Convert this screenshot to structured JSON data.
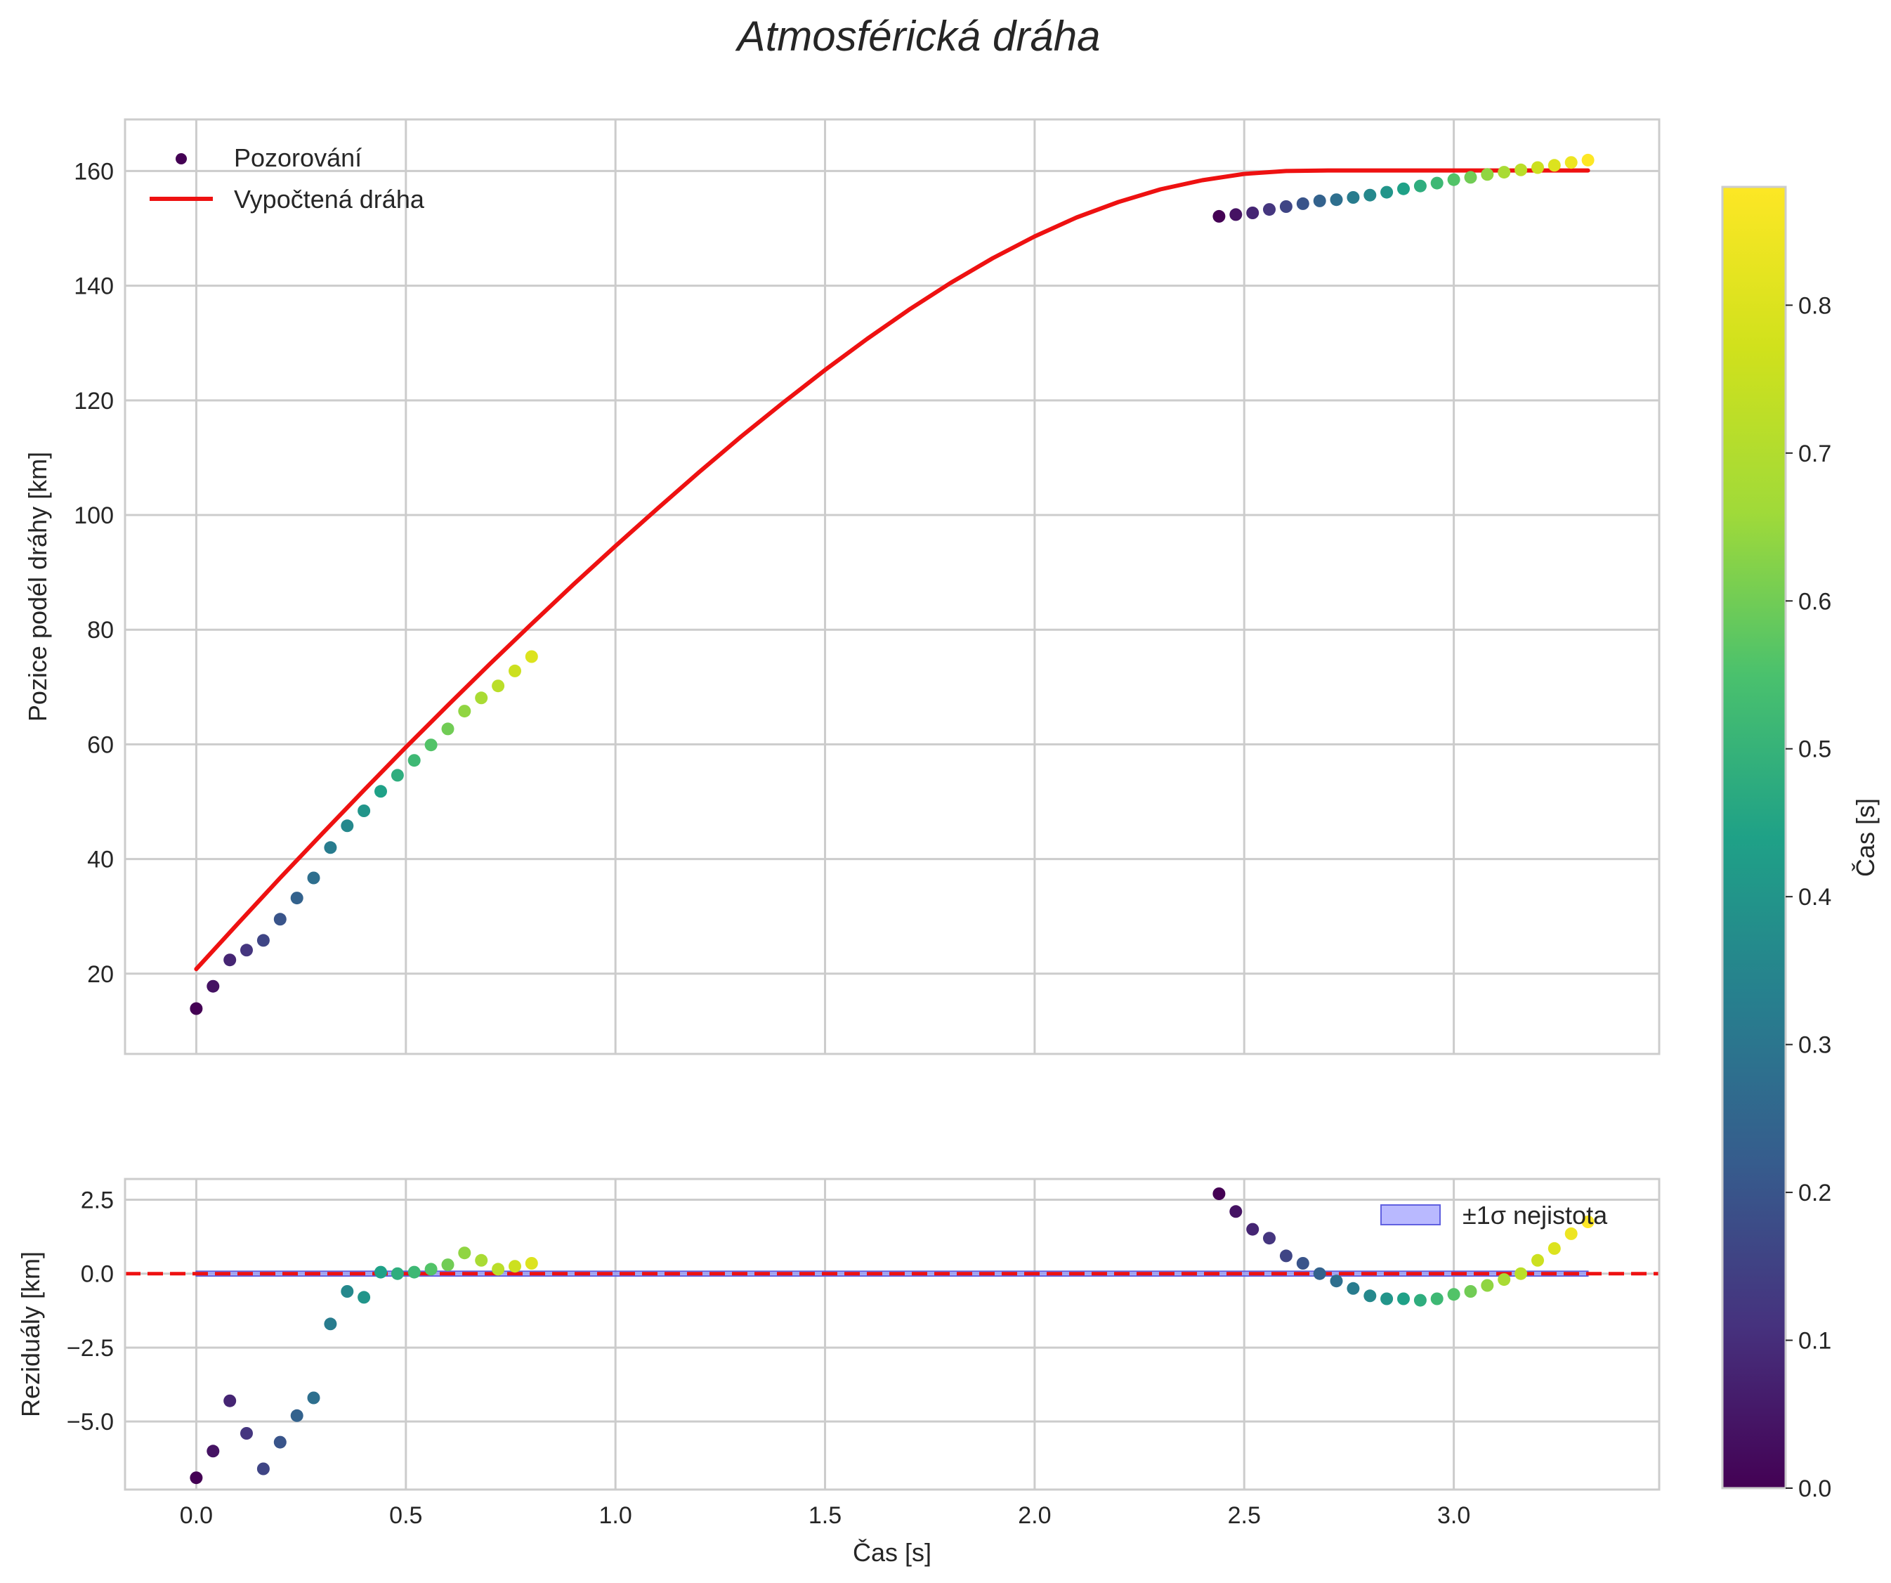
{
  "chart_data": [
    {
      "type": "scatter+line",
      "title": "Atmosférická dráha",
      "xlabel": "",
      "ylabel": "Pozice podél dráhy [km]",
      "xlim": [
        -0.17,
        3.49
      ],
      "ylim": [
        6,
        169
      ],
      "xticks": [
        0.0,
        0.5,
        1.0,
        1.5,
        2.0,
        2.5,
        3.0
      ],
      "yticks": [
        20,
        40,
        60,
        80,
        100,
        120,
        140,
        160
      ],
      "grid": true,
      "legend": {
        "placement": "top-left",
        "entries": [
          "Pozorování",
          "Vypočtená dráha"
        ]
      },
      "observations": {
        "name": "Pozorování",
        "x": [
          0.0,
          0.04,
          0.08,
          0.12,
          0.16,
          0.2,
          0.24,
          0.28,
          0.32,
          0.36,
          0.4,
          0.44,
          0.48,
          0.52,
          0.56,
          0.6,
          0.64,
          0.68,
          0.72,
          0.76,
          0.8,
          2.44,
          2.48,
          2.52,
          2.56,
          2.6,
          2.64,
          2.68,
          2.72,
          2.76,
          2.8,
          2.84,
          2.88,
          2.92,
          2.96,
          3.0,
          3.04,
          3.08,
          3.12,
          3.16,
          3.2,
          3.24,
          3.28,
          3.32
        ],
        "y": [
          13.9,
          17.8,
          22.4,
          24.1,
          25.8,
          29.5,
          33.2,
          36.7,
          42.0,
          45.8,
          48.4,
          51.8,
          54.6,
          57.2,
          59.9,
          62.7,
          65.8,
          68.1,
          70.2,
          72.8,
          75.3,
          152.1,
          152.4,
          152.7,
          153.3,
          153.8,
          154.3,
          154.8,
          155.0,
          155.4,
          155.8,
          156.3,
          156.9,
          157.4,
          157.9,
          158.5,
          158.9,
          159.4,
          159.8,
          160.2,
          160.6,
          161.0,
          161.5,
          161.9
        ],
        "color_values_s": [
          0.0,
          0.04,
          0.08,
          0.12,
          0.16,
          0.2,
          0.24,
          0.28,
          0.32,
          0.36,
          0.4,
          0.44,
          0.48,
          0.52,
          0.56,
          0.6,
          0.64,
          0.68,
          0.72,
          0.76,
          0.8,
          0.0,
          0.04,
          0.08,
          0.12,
          0.16,
          0.2,
          0.24,
          0.28,
          0.32,
          0.36,
          0.4,
          0.44,
          0.48,
          0.52,
          0.56,
          0.6,
          0.64,
          0.68,
          0.72,
          0.76,
          0.8,
          0.84,
          0.88
        ]
      },
      "fit_line": {
        "name": "Vypočtená dráha",
        "color": "#ee1111",
        "x": [
          0.0,
          0.1,
          0.2,
          0.3,
          0.4,
          0.5,
          0.6,
          0.7,
          0.8,
          0.9,
          1.0,
          1.1,
          1.2,
          1.3,
          1.4,
          1.5,
          1.6,
          1.7,
          1.8,
          1.9,
          2.0,
          2.1,
          2.2,
          2.3,
          2.4,
          2.5,
          2.6,
          2.7,
          2.8,
          2.9,
          3.0,
          3.1,
          3.2,
          3.32
        ],
        "y": [
          20.8,
          28.8,
          36.7,
          44.4,
          52.0,
          59.5,
          66.8,
          74.0,
          81.0,
          87.9,
          94.6,
          101.1,
          107.5,
          113.7,
          119.6,
          125.3,
          130.7,
          135.8,
          140.5,
          144.8,
          148.6,
          151.9,
          154.6,
          156.8,
          158.4,
          159.5,
          160.0,
          160.1,
          160.1,
          160.1,
          160.1,
          160.1,
          160.1,
          160.1
        ]
      }
    },
    {
      "type": "scatter",
      "title": "",
      "xlabel": "Čas [s]",
      "ylabel": "Reziduály [km]",
      "xlim": [
        -0.17,
        3.49
      ],
      "ylim": [
        -7.3,
        3.2
      ],
      "xticks": [
        0.0,
        0.5,
        1.0,
        1.5,
        2.0,
        2.5,
        3.0
      ],
      "yticks": [
        2.5,
        0.0,
        -2.5,
        -5.0
      ],
      "grid": true,
      "legend": {
        "placement": "top-right",
        "entries": [
          "±1σ nejistota"
        ]
      },
      "uncertainty_band": {
        "name": "±1σ nejistota",
        "sigma": 0.08,
        "color": "#8080ff"
      },
      "zero_line": {
        "y": 0.0,
        "color": "#ee1111",
        "style": "dashed"
      },
      "residuals": {
        "x": [
          0.0,
          0.04,
          0.08,
          0.12,
          0.16,
          0.2,
          0.24,
          0.28,
          0.32,
          0.36,
          0.4,
          0.44,
          0.48,
          0.52,
          0.56,
          0.6,
          0.64,
          0.68,
          0.72,
          0.76,
          0.8,
          2.44,
          2.48,
          2.52,
          2.56,
          2.6,
          2.64,
          2.68,
          2.72,
          2.76,
          2.8,
          2.84,
          2.88,
          2.92,
          2.96,
          3.0,
          3.04,
          3.08,
          3.12,
          3.16,
          3.2,
          3.24,
          3.28,
          3.32
        ],
        "y": [
          -6.9,
          -6.0,
          -4.3,
          -5.4,
          -6.6,
          -5.7,
          -4.8,
          -4.2,
          -1.7,
          -0.6,
          -0.8,
          0.05,
          0.0,
          0.05,
          0.15,
          0.3,
          0.7,
          0.45,
          0.15,
          0.25,
          0.35,
          2.7,
          2.1,
          1.5,
          1.2,
          0.6,
          0.35,
          0.0,
          -0.25,
          -0.5,
          -0.75,
          -0.85,
          -0.85,
          -0.9,
          -0.85,
          -0.7,
          -0.6,
          -0.4,
          -0.2,
          0.0,
          0.45,
          0.85,
          1.35,
          1.75
        ],
        "color_values_s": [
          0.0,
          0.04,
          0.08,
          0.12,
          0.16,
          0.2,
          0.24,
          0.28,
          0.32,
          0.36,
          0.4,
          0.44,
          0.48,
          0.52,
          0.56,
          0.6,
          0.64,
          0.68,
          0.72,
          0.76,
          0.8,
          0.0,
          0.04,
          0.08,
          0.12,
          0.16,
          0.2,
          0.24,
          0.28,
          0.32,
          0.36,
          0.4,
          0.44,
          0.48,
          0.52,
          0.56,
          0.6,
          0.64,
          0.68,
          0.72,
          0.76,
          0.8,
          0.84,
          0.88
        ]
      }
    }
  ],
  "colorbar": {
    "label": "Čas [s]",
    "colormap": "viridis",
    "range": [
      0.0,
      0.88
    ],
    "ticks": [
      0.0,
      0.1,
      0.2,
      0.3,
      0.4,
      0.5,
      0.6,
      0.7,
      0.8
    ]
  }
}
